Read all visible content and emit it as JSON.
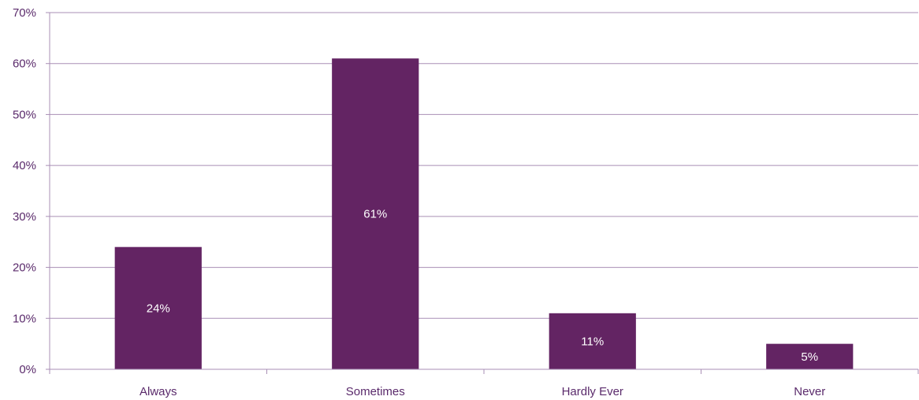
{
  "chart_data": {
    "type": "bar",
    "categories": [
      "Always",
      "Sometimes",
      "Hardly Ever",
      "Never"
    ],
    "values": [
      24,
      61,
      11,
      5
    ],
    "data_labels": [
      "24%",
      "61%",
      "11%",
      "5%"
    ],
    "y_ticks": [
      "0%",
      "10%",
      "20%",
      "30%",
      "40%",
      "50%",
      "60%",
      "70%"
    ],
    "ylim": [
      0,
      70
    ],
    "y_unit": "%",
    "grid": true,
    "legend": "none",
    "colors": {
      "bar": "#632463",
      "grid": "#a98fb5",
      "text": "#5a2a6b",
      "label_text": "#ffffff"
    }
  }
}
